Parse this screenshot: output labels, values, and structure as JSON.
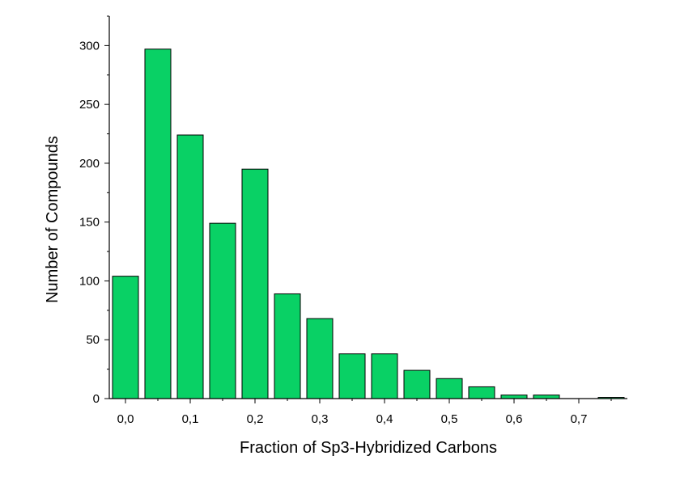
{
  "chart_data": {
    "type": "bar",
    "xlabel": "Fraction of Sp3-Hybridized Carbons",
    "ylabel": "Number of Compounds",
    "xlim": [
      -0.025,
      0.775
    ],
    "ylim": [
      0,
      325
    ],
    "bar_color": "#09d165",
    "grid": false,
    "x": [
      0.0,
      0.05,
      0.1,
      0.15,
      0.2,
      0.25,
      0.3,
      0.35,
      0.4,
      0.45,
      0.5,
      0.55,
      0.6,
      0.65,
      0.7,
      0.75
    ],
    "values": [
      104,
      297,
      224,
      149,
      195,
      89,
      68,
      38,
      38,
      24,
      17,
      10,
      3,
      3,
      0,
      1
    ],
    "x_ticks": [
      0.0,
      0.1,
      0.2,
      0.3,
      0.4,
      0.5,
      0.6,
      0.7
    ],
    "x_tick_labels": [
      "0,0",
      "0,1",
      "0,2",
      "0,3",
      "0,4",
      "0,5",
      "0,6",
      "0,7"
    ],
    "y_ticks": [
      0,
      50,
      100,
      150,
      200,
      250,
      300
    ],
    "y_tick_labels": [
      "0",
      "50",
      "100",
      "150",
      "200",
      "250",
      "300"
    ]
  }
}
